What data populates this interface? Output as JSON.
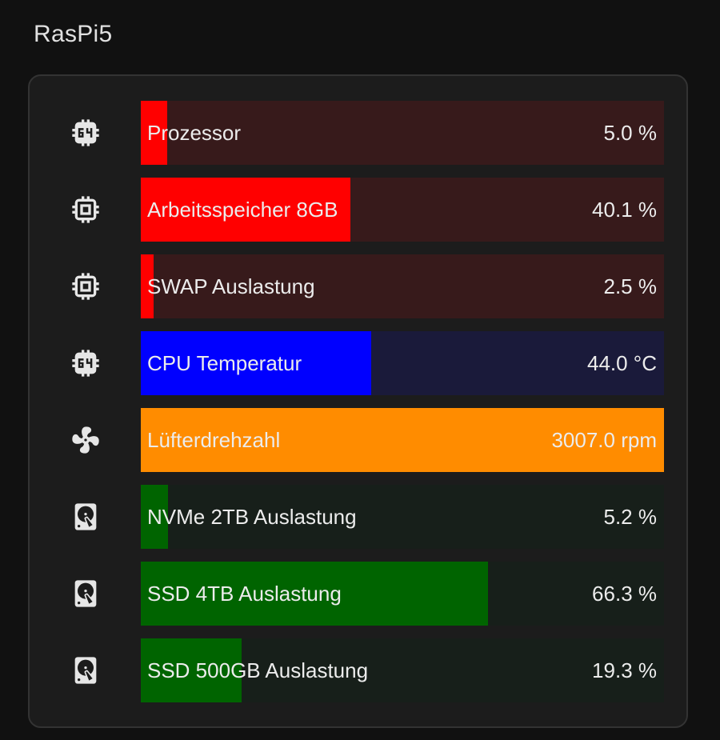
{
  "card_title": "RasPi5",
  "rows": [
    {
      "label": "Prozessor",
      "value": "5.0 %",
      "fraction": 0.05,
      "fill_color": "#ff0000",
      "track_color": "#371a1b",
      "icon": "cpu-64-bit-icon"
    },
    {
      "label": "Arbeitsspeicher 8GB",
      "value": "40.1 %",
      "fraction": 0.401,
      "fill_color": "#ff0000",
      "track_color": "#371a1b",
      "icon": "memory-chip-icon"
    },
    {
      "label": "SWAP Auslastung",
      "value": "2.5 %",
      "fraction": 0.025,
      "fill_color": "#ff0000",
      "track_color": "#371a1b",
      "icon": "memory-chip-icon"
    },
    {
      "label": "CPU Temperatur",
      "value": "44.0 °C",
      "fraction": 0.44,
      "fill_color": "#0000ff",
      "track_color": "#1a1a3a",
      "icon": "cpu-64-bit-icon"
    },
    {
      "label": "Lüfterdrehzahl",
      "value": "3007.0 rpm",
      "fraction": 1.0,
      "fill_color": "#ff8c00",
      "track_color": "#3a2a10",
      "icon": "fan-icon"
    },
    {
      "label": "NVMe 2TB Auslastung",
      "value": "5.2 %",
      "fraction": 0.052,
      "fill_color": "#006400",
      "track_color": "#171f1a",
      "icon": "harddisk-icon"
    },
    {
      "label": "SSD 4TB Auslastung",
      "value": "66.3 %",
      "fraction": 0.663,
      "fill_color": "#006400",
      "track_color": "#171f1a",
      "icon": "harddisk-icon"
    },
    {
      "label": "SSD 500GB Auslastung",
      "value": "19.3 %",
      "fraction": 0.193,
      "fill_color": "#006400",
      "track_color": "#171f1a",
      "icon": "harddisk-icon"
    }
  ]
}
